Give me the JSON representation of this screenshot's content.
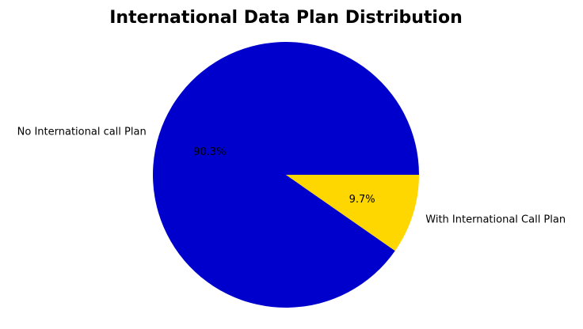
{
  "chart_data": {
    "type": "pie",
    "title": "International Data Plan Distribution",
    "slices": [
      {
        "label": "No International call Plan",
        "value": 90.3,
        "pct_label": "90.3%",
        "color": "#0000CD"
      },
      {
        "label": "With International Call Plan",
        "value": 9.7,
        "pct_label": "9.7%",
        "color": "#FFD700"
      }
    ],
    "start_angle_deg": 0,
    "direction": "counterclockwise",
    "legend": "none"
  }
}
